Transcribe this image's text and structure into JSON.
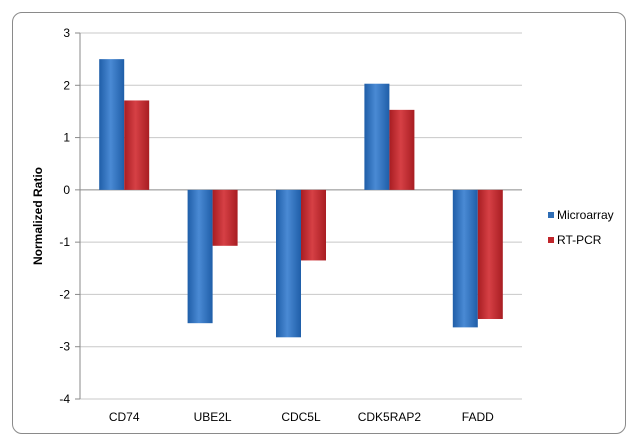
{
  "chart_data": {
    "type": "bar",
    "title": "",
    "xlabel": "",
    "ylabel": "Normalized Ratio",
    "ylim": [
      -4,
      3
    ],
    "yticks": [
      3,
      2,
      1,
      0,
      -1,
      -2,
      -3,
      -4
    ],
    "categories": [
      "CD74",
      "UBE2L",
      "CDC5L",
      "CDK5RAP2",
      "FADD"
    ],
    "series": [
      {
        "name": "Microarray",
        "values": [
          2.5,
          -2.55,
          -2.82,
          2.03,
          -2.63
        ]
      },
      {
        "name": "RT-PCR",
        "values": [
          1.71,
          -1.07,
          -1.35,
          1.53,
          -2.47
        ]
      }
    ],
    "grid": true,
    "legend_position": "right"
  },
  "colors": {
    "microarray": "#2e6db5",
    "rtpcr": "#c0262b",
    "grid": "#c8c8c8",
    "axis": "#8a8a8a"
  }
}
